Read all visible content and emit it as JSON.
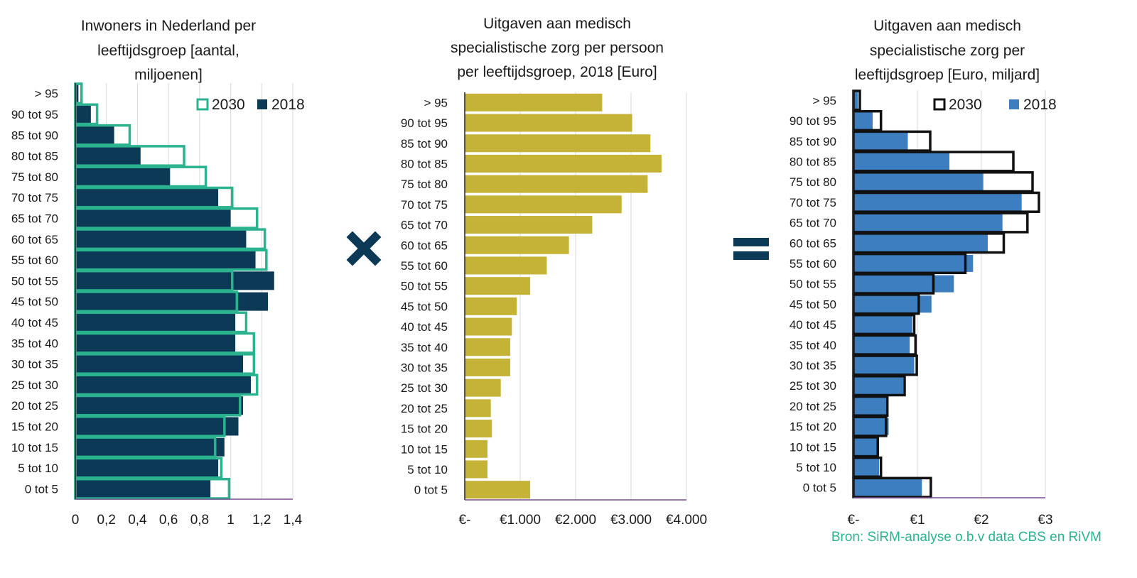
{
  "colors": {
    "navy": "#0c3a56",
    "green": "#2bb38f",
    "gold": "#c4b336",
    "blue": "#3d7ec1",
    "black": "#111111",
    "grid": "#d9d9d9",
    "axis": "#7a4f8f"
  },
  "operators": {
    "multiply": "multiply-icon",
    "equals": "equals-icon"
  },
  "categories": [
    "> 95",
    "90 tot 95",
    "85 tot 90",
    "80 tot 85",
    "75 tot 80",
    "70 tot 75",
    "65 tot 70",
    "60 tot 65",
    "55 tot 60",
    "50 tot 55",
    "45 tot 50",
    "40 tot 45",
    "35 tot 40",
    "30 tot 35",
    "25 tot 30",
    "20 tot 25",
    "15 tot 20",
    "10 tot 15",
    "5 tot 10",
    "0 tot 5"
  ],
  "chart_data": [
    {
      "type": "bar",
      "orientation": "horizontal",
      "title": [
        "Inwoners in Nederland per",
        "leeftijdsgroep [aantal,",
        "miljoenen]"
      ],
      "series": [
        {
          "name": "2018",
          "style": "filled",
          "values": [
            0.02,
            0.1,
            0.25,
            0.42,
            0.61,
            0.92,
            1.0,
            1.1,
            1.16,
            1.28,
            1.24,
            1.03,
            1.03,
            1.08,
            1.13,
            1.08,
            1.05,
            0.96,
            0.92,
            0.87
          ]
        },
        {
          "name": "2030",
          "style": "outline",
          "values": [
            0.04,
            0.14,
            0.35,
            0.7,
            0.84,
            1.01,
            1.17,
            1.22,
            1.23,
            1.01,
            1.04,
            1.1,
            1.15,
            1.15,
            1.17,
            1.06,
            0.96,
            0.9,
            0.94,
            0.99
          ]
        }
      ],
      "xlim": [
        0,
        1.4
      ],
      "xticks": [
        "0",
        "0,2",
        "0,4",
        "0,6",
        "0,8",
        "1",
        "1,2",
        "1,4"
      ],
      "legend": [
        "2030",
        "2018"
      ]
    },
    {
      "type": "bar",
      "orientation": "horizontal",
      "title": [
        "Uitgaven aan medisch",
        "specialistische zorg per persoon",
        "per leeftijdsgroep, 2018 [Euro]"
      ],
      "series": [
        {
          "name": "2018",
          "style": "filled",
          "values": [
            2480,
            3020,
            3350,
            3550,
            3300,
            2830,
            2300,
            1880,
            1480,
            1180,
            940,
            850,
            820,
            820,
            650,
            470,
            490,
            410,
            410,
            1180
          ]
        }
      ],
      "xlim": [
        0,
        4000
      ],
      "xticks": [
        "€-",
        "€1.000",
        "€2.000",
        "€3.000",
        "€4.000"
      ]
    },
    {
      "type": "bar",
      "orientation": "horizontal",
      "title": [
        "Uitgaven aan medisch",
        "specialistische zorg per",
        "leeftijdsgroep [Euro, miljard]"
      ],
      "series": [
        {
          "name": "2018",
          "style": "filled",
          "values": [
            0.07,
            0.3,
            0.85,
            1.5,
            2.03,
            2.63,
            2.33,
            2.1,
            1.87,
            1.57,
            1.22,
            0.92,
            0.88,
            0.95,
            0.78,
            0.53,
            0.55,
            0.4,
            0.4,
            1.07
          ]
        },
        {
          "name": "2030",
          "style": "outline",
          "values": [
            0.1,
            0.43,
            1.2,
            2.5,
            2.8,
            2.9,
            2.72,
            2.35,
            1.75,
            1.25,
            1.02,
            0.95,
            0.97,
            0.99,
            0.8,
            0.53,
            0.51,
            0.38,
            0.43,
            1.21
          ]
        }
      ],
      "xlim": [
        0,
        3
      ],
      "xticks": [
        "€-",
        "€1",
        "€2",
        "€3"
      ],
      "legend": [
        "2030",
        "2018"
      ]
    }
  ],
  "source": "Bron: SiRM-analyse o.b.v data CBS en RiVM"
}
